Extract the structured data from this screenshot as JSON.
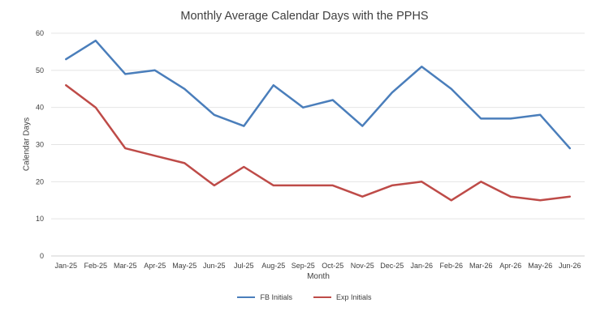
{
  "chart_data": {
    "type": "line",
    "title": "Monthly Average Calendar Days with the PPHS",
    "xlabel": "Month",
    "ylabel": "Calendar Days",
    "ylim": [
      0,
      60
    ],
    "yticks": [
      0,
      10,
      20,
      30,
      40,
      50,
      60
    ],
    "grid": true,
    "legend_position": "bottom",
    "categories": [
      "Jan-25",
      "Feb-25",
      "Mar-25",
      "Apr-25",
      "May-25",
      "Jun-25",
      "Jul-25",
      "Aug-25",
      "Sep-25",
      "Oct-25",
      "Nov-25",
      "Dec-25",
      "Jan-26",
      "Feb-26",
      "Mar-26",
      "Apr-26",
      "May-26",
      "Jun-26"
    ],
    "series": [
      {
        "name": "FB Initials",
        "color": "#4a7ebb",
        "values": [
          53,
          58,
          49,
          50,
          45,
          38,
          35,
          46,
          40,
          42,
          35,
          44,
          51,
          45,
          37,
          37,
          38,
          29
        ]
      },
      {
        "name": "Exp Initials",
        "color": "#be4b48",
        "values": [
          46,
          40,
          29,
          27,
          25,
          19,
          24,
          19,
          19,
          19,
          16,
          19,
          20,
          15,
          20,
          16,
          15,
          16
        ]
      }
    ]
  }
}
